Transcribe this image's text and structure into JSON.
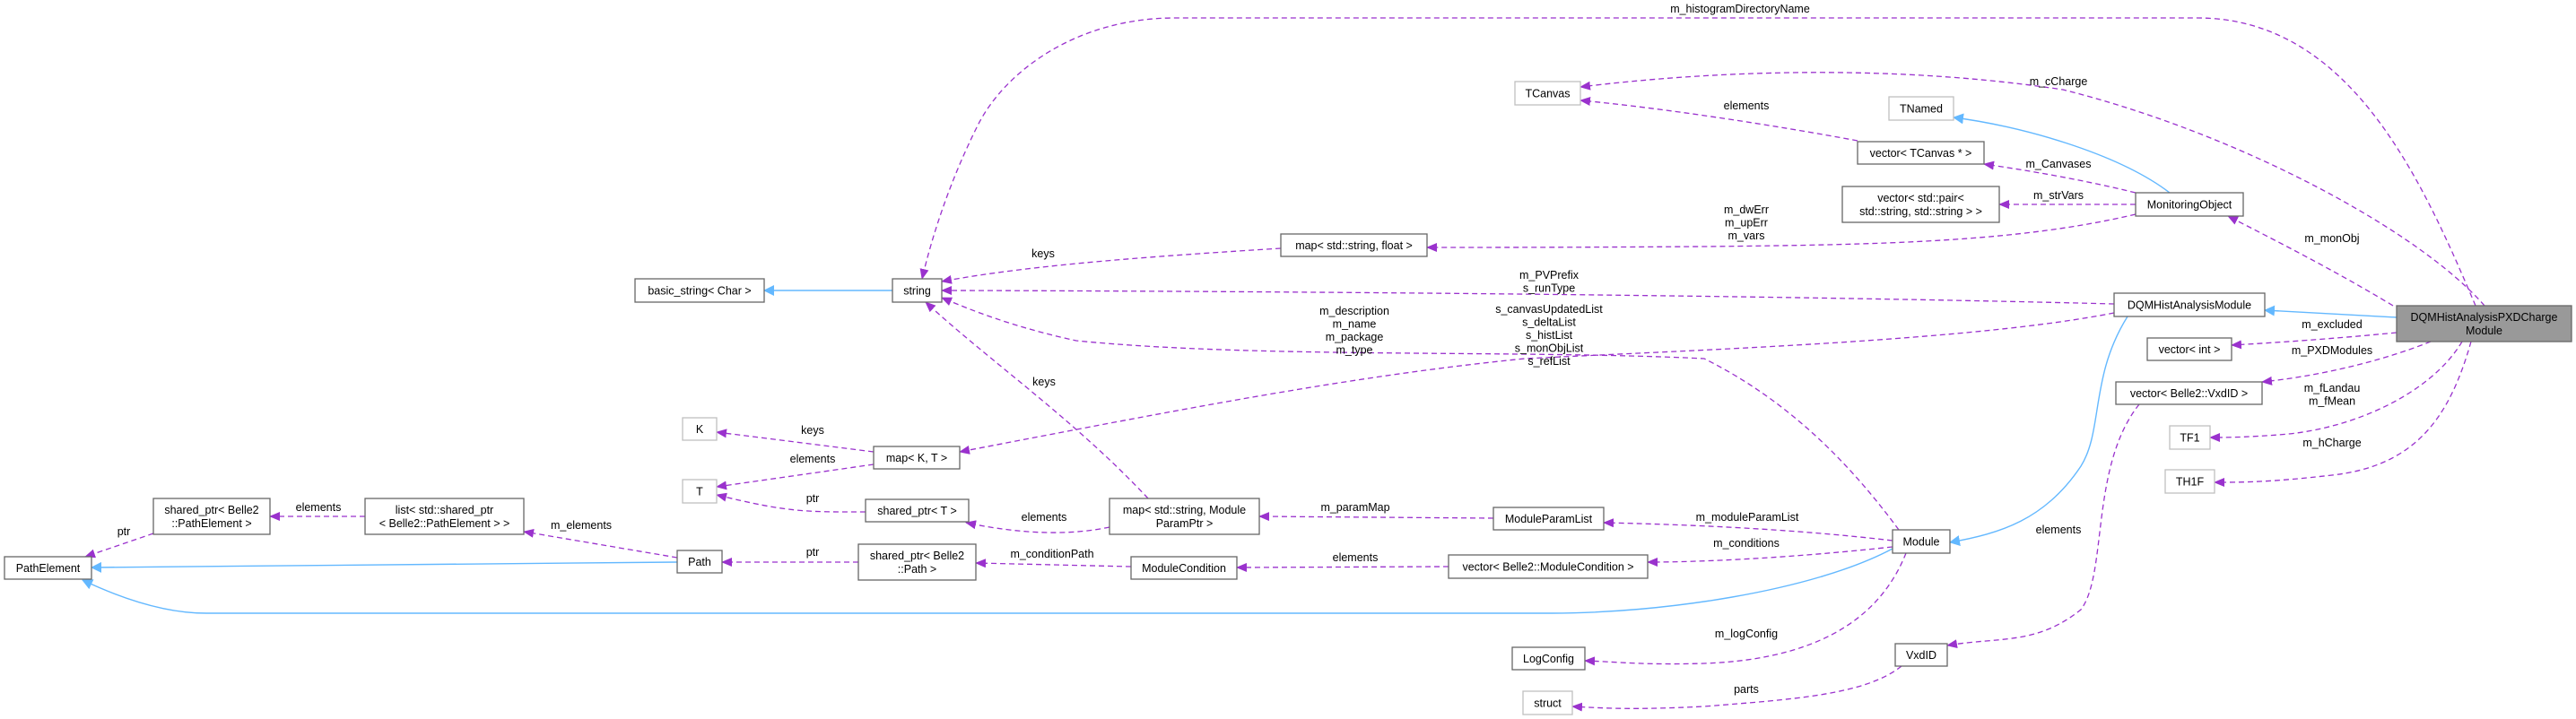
{
  "colors": {
    "dependency": "#9a32cd",
    "inheritance": "#63b8ff",
    "focus_fill": "#999999",
    "box_border": "#666666",
    "external_border": "#bfbfbf"
  },
  "nodes": [
    {
      "id": "PathElement",
      "lines": [
        "PathElement"
      ]
    },
    {
      "id": "spPathElement",
      "lines": [
        "shared_ptr< Belle2",
        "::PathElement >"
      ]
    },
    {
      "id": "listSp",
      "lines": [
        "list< std::shared_ptr",
        "< Belle2::PathElement > >"
      ]
    },
    {
      "id": "Path",
      "lines": [
        "Path"
      ]
    },
    {
      "id": "K",
      "lines": [
        "K"
      ],
      "external": true
    },
    {
      "id": "T",
      "lines": [
        "T"
      ],
      "external": true
    },
    {
      "id": "mapKT",
      "lines": [
        "map< K, T >"
      ]
    },
    {
      "id": "spT",
      "lines": [
        "shared_ptr< T >"
      ]
    },
    {
      "id": "spPath",
      "lines": [
        "shared_ptr< Belle2",
        "::Path >"
      ]
    },
    {
      "id": "mapParam",
      "lines": [
        "map< std::string, Module",
        "ParamPtr >"
      ]
    },
    {
      "id": "ModuleParamList",
      "lines": [
        "ModuleParamList"
      ]
    },
    {
      "id": "ModuleCondition",
      "lines": [
        "ModuleCondition"
      ]
    },
    {
      "id": "vecModCond",
      "lines": [
        "vector< Belle2::ModuleCondition >"
      ]
    },
    {
      "id": "LogConfig",
      "lines": [
        "LogConfig"
      ]
    },
    {
      "id": "struct",
      "lines": [
        "struct"
      ],
      "external": true
    },
    {
      "id": "Module",
      "lines": [
        "Module"
      ]
    },
    {
      "id": "VxdID",
      "lines": [
        "VxdID"
      ]
    },
    {
      "id": "string",
      "lines": [
        "string"
      ]
    },
    {
      "id": "basicString",
      "lines": [
        "basic_string< Char >"
      ]
    },
    {
      "id": "TCanvas",
      "lines": [
        "TCanvas"
      ],
      "external": true
    },
    {
      "id": "TNamed",
      "lines": [
        "TNamed"
      ],
      "external": true
    },
    {
      "id": "vecTCanvas",
      "lines": [
        "vector< TCanvas * >"
      ]
    },
    {
      "id": "vecPair",
      "lines": [
        "vector< std::pair<",
        "std::string, std::string > >"
      ]
    },
    {
      "id": "MonitoringObject",
      "lines": [
        "MonitoringObject"
      ]
    },
    {
      "id": "mapStrFloat",
      "lines": [
        "map< std::string, float >"
      ]
    },
    {
      "id": "DQMHistAnalysisModule",
      "lines": [
        "DQMHistAnalysisModule"
      ]
    },
    {
      "id": "PXDCharge",
      "lines": [
        "DQMHistAnalysisPXDCharge",
        "Module"
      ],
      "focus": true
    },
    {
      "id": "vecInt",
      "lines": [
        "vector< int >"
      ]
    },
    {
      "id": "vecVxdID",
      "lines": [
        "vector< Belle2::VxdID >"
      ]
    },
    {
      "id": "TF1",
      "lines": [
        "TF1"
      ],
      "external": true
    },
    {
      "id": "TH1F",
      "lines": [
        "TH1F"
      ],
      "external": true
    }
  ],
  "edges": [
    {
      "from": "string",
      "to": "basicString",
      "kind": "inheritance",
      "labels": []
    },
    {
      "from": "Path",
      "to": "PathElement",
      "kind": "inheritance",
      "labels": []
    },
    {
      "from": "Module",
      "to": "PathElement",
      "kind": "inheritance",
      "labels": []
    },
    {
      "from": "DQMHistAnalysisModule",
      "to": "Module",
      "kind": "inheritance",
      "labels": []
    },
    {
      "from": "MonitoringObject",
      "to": "TNamed",
      "kind": "inheritance",
      "labels": []
    },
    {
      "from": "PXDCharge",
      "to": "DQMHistAnalysisModule",
      "kind": "inheritance",
      "labels": []
    },
    {
      "from": "spPathElement",
      "to": "PathElement",
      "kind": "usage",
      "labels": [
        "ptr"
      ]
    },
    {
      "from": "listSp",
      "to": "spPathElement",
      "kind": "usage",
      "labels": [
        "elements"
      ]
    },
    {
      "from": "Path",
      "to": "listSp",
      "kind": "usage",
      "labels": [
        "m_elements"
      ]
    },
    {
      "from": "spPath",
      "to": "Path",
      "kind": "usage",
      "labels": [
        "ptr"
      ]
    },
    {
      "from": "mapKT",
      "to": "K",
      "kind": "usage",
      "labels": [
        "keys"
      ]
    },
    {
      "from": "mapKT",
      "to": "T",
      "kind": "usage",
      "labels": [
        "elements"
      ]
    },
    {
      "from": "spT",
      "to": "T",
      "kind": "usage",
      "labels": [
        "ptr"
      ]
    },
    {
      "from": "mapParam",
      "to": "spT",
      "kind": "usage",
      "labels": [
        "elements"
      ]
    },
    {
      "from": "mapParam",
      "to": "string",
      "kind": "usage",
      "labels": [
        "keys"
      ]
    },
    {
      "from": "ModuleParamList",
      "to": "mapParam",
      "kind": "usage",
      "labels": [
        "m_paramMap"
      ]
    },
    {
      "from": "ModuleCondition",
      "to": "spPath",
      "kind": "usage",
      "labels": [
        "m_conditionPath"
      ]
    },
    {
      "from": "vecModCond",
      "to": "ModuleCondition",
      "kind": "usage",
      "labels": [
        "elements"
      ]
    },
    {
      "from": "Module",
      "to": "ModuleParamList",
      "kind": "usage",
      "labels": [
        "m_moduleParamList"
      ]
    },
    {
      "from": "Module",
      "to": "vecModCond",
      "kind": "usage",
      "labels": [
        "m_conditions"
      ]
    },
    {
      "from": "Module",
      "to": "LogConfig",
      "kind": "usage",
      "labels": [
        "m_logConfig"
      ]
    },
    {
      "from": "VxdID",
      "to": "struct",
      "kind": "usage",
      "labels": [
        "parts"
      ]
    },
    {
      "from": "vecVxdID",
      "to": "VxdID",
      "kind": "usage",
      "labels": [
        "elements"
      ]
    },
    {
      "from": "mapStrFloat",
      "to": "string",
      "kind": "usage",
      "labels": [
        "keys"
      ]
    },
    {
      "from": "MonitoringObject",
      "to": "mapStrFloat",
      "kind": "usage",
      "labels": [
        "m_dwErr",
        "m_upErr",
        "m_vars"
      ]
    },
    {
      "from": "DQMHistAnalysisModule",
      "to": "string",
      "kind": "usage",
      "labels": [
        "m_PVPrefix",
        "s_runType"
      ]
    },
    {
      "from": "Module",
      "to": "string",
      "kind": "usage",
      "labels": [
        "m_description",
        "m_name",
        "m_package",
        "m_type"
      ]
    },
    {
      "from": "DQMHistAnalysisModule",
      "to": "mapKT",
      "kind": "usage",
      "labels": [
        "s_canvasUpdatedList",
        "s_deltaList",
        "s_histList",
        "s_monObjList",
        "s_refList"
      ]
    },
    {
      "from": "PXDCharge",
      "to": "string",
      "kind": "usage",
      "labels": [
        "m_histogramDirectoryName"
      ]
    },
    {
      "from": "PXDCharge",
      "to": "TCanvas",
      "kind": "usage",
      "labels": [
        "m_cCharge"
      ]
    },
    {
      "from": "vecTCanvas",
      "to": "TCanvas",
      "kind": "usage",
      "labels": [
        "elements"
      ]
    },
    {
      "from": "MonitoringObject",
      "to": "vecTCanvas",
      "kind": "usage",
      "labels": [
        "m_Canvases"
      ]
    },
    {
      "from": "MonitoringObject",
      "to": "vecPair",
      "kind": "usage",
      "labels": [
        "m_strVars"
      ]
    },
    {
      "from": "PXDCharge",
      "to": "MonitoringObject",
      "kind": "usage",
      "labels": [
        "m_monObj"
      ]
    },
    {
      "from": "PXDCharge",
      "to": "vecInt",
      "kind": "usage",
      "labels": [
        "m_excluded"
      ]
    },
    {
      "from": "PXDCharge",
      "to": "vecVxdID",
      "kind": "usage",
      "labels": [
        "m_PXDModules"
      ]
    },
    {
      "from": "PXDCharge",
      "to": "TF1",
      "kind": "usage",
      "labels": [
        "m_fLandau",
        "m_fMean"
      ]
    },
    {
      "from": "PXDCharge",
      "to": "TH1F",
      "kind": "usage",
      "labels": [
        "m_hCharge"
      ]
    }
  ]
}
